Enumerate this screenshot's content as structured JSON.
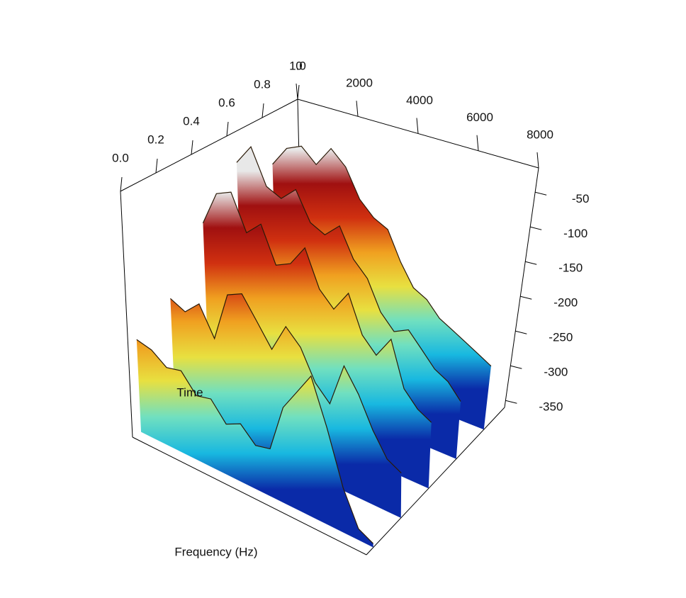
{
  "chart_data": {
    "type": "surface",
    "xlabel": "Frequency (Hz)",
    "ylabel": "Time",
    "x": [
      0,
      500,
      1000,
      1500,
      2000,
      2500,
      3000,
      3500,
      4000,
      4500,
      5000,
      5500,
      6000,
      6500,
      7000,
      7500,
      8000
    ],
    "xlim": [
      0,
      8000
    ],
    "xticks": [
      0,
      2000,
      4000,
      6000,
      8000
    ],
    "ylim": [
      0,
      1
    ],
    "yticks": [
      {
        "value": 0,
        "label": "0.0"
      },
      0.2,
      0.4,
      0.6,
      0.8,
      {
        "value": 1,
        "label": "1.0"
      }
    ],
    "zlim": [
      -360,
      -15
    ],
    "zticks": [
      -50,
      -100,
      -150,
      -200,
      -250,
      -300,
      -350
    ],
    "colormap": [
      "#0a2aa8",
      "#18b8e0",
      "#70e0c0",
      "#e8e040",
      "#f0a020",
      "#d03010",
      "#a01010",
      "#e8e8e8"
    ],
    "series": [
      {
        "time": 0.85,
        "values": [
          -90,
          -60,
          -50,
          -70,
          -40,
          -60,
          -100,
          -120,
          -130,
          -170,
          -200,
          -210,
          -230,
          -240,
          -250,
          -260,
          -270
        ]
      },
      {
        "time": 0.65,
        "values": [
          -60,
          -30,
          -80,
          -90,
          -70,
          -110,
          -120,
          -100,
          -140,
          -160,
          -200,
          -220,
          -210,
          -230,
          -250,
          -260,
          -280
        ]
      },
      {
        "time": 0.45,
        "values": [
          -120,
          -70,
          -60,
          -110,
          -90,
          -140,
          -130,
          -100,
          -150,
          -170,
          -140,
          -190,
          -210,
          -180,
          -240,
          -260,
          -270
        ]
      },
      {
        "time": 0.25,
        "values": [
          -200,
          -210,
          -190,
          -230,
          -160,
          -150,
          -180,
          -210,
          -170,
          -190,
          -230,
          -250,
          -190,
          -220,
          -260,
          -290,
          -300
        ]
      },
      {
        "time": 0.05,
        "values": [
          -230,
          -235,
          -250,
          -245,
          -270,
          -265,
          -290,
          -280,
          -300,
          -295,
          -230,
          -200,
          -170,
          -230,
          -300,
          -345,
          -355
        ]
      }
    ]
  }
}
